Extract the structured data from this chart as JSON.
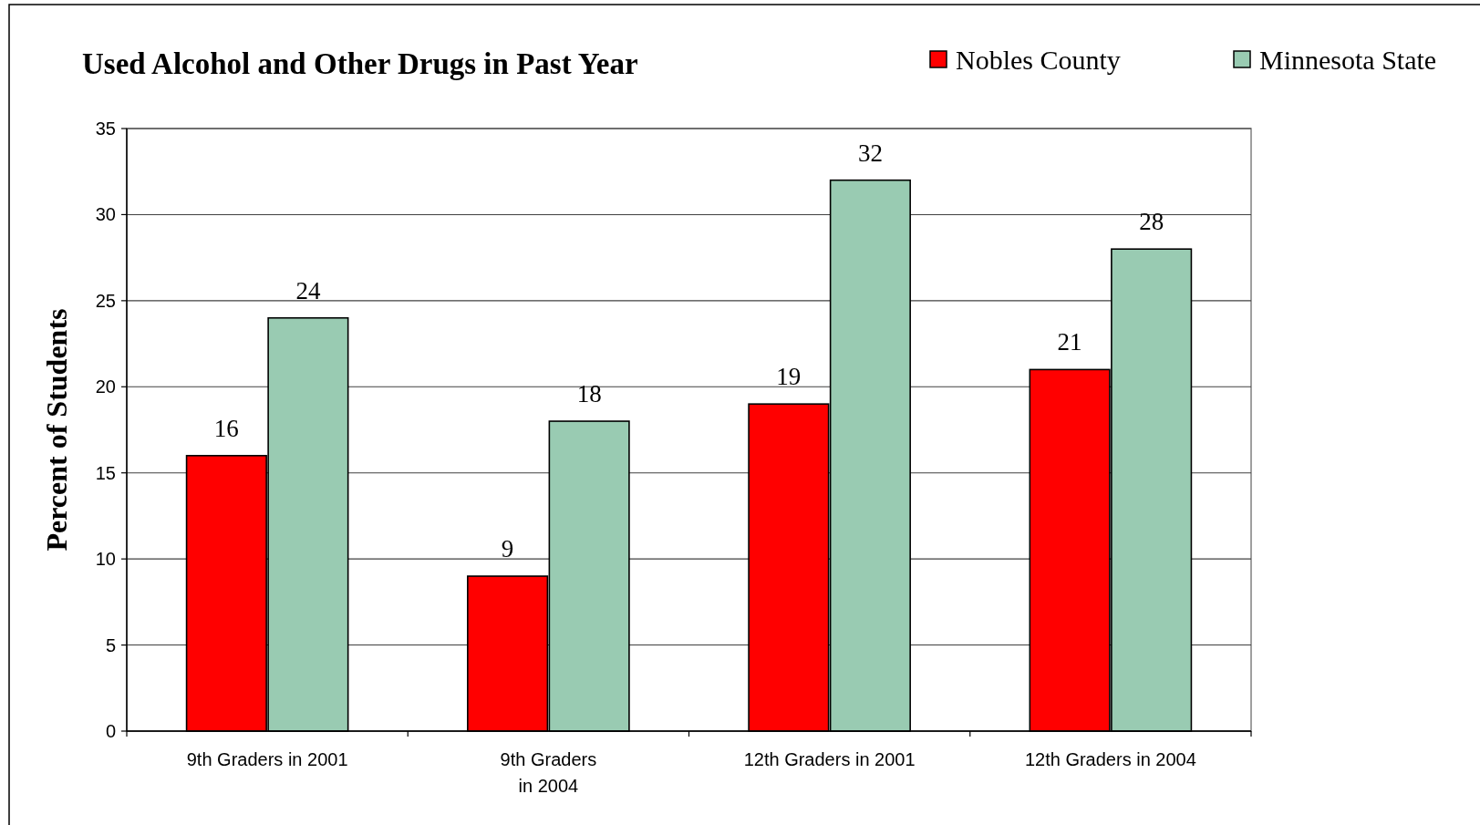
{
  "chart_data": {
    "type": "bar",
    "title": "Used Alcohol and Other Drugs in Past Year",
    "ylabel": "Percent of Students",
    "categories": [
      "9th Graders in 2001",
      "9th Graders\nin 2004",
      "12th Graders in 2001",
      "12th Graders in 2004"
    ],
    "series": [
      {
        "name": "Nobles County",
        "color": "#ff0000",
        "values": [
          16,
          9,
          19,
          21
        ]
      },
      {
        "name": "Minnesota State",
        "color": "#99cbb2",
        "values": [
          24,
          18,
          32,
          28
        ]
      }
    ],
    "ylim": [
      0,
      35
    ],
    "yticks": [
      0,
      5,
      10,
      15,
      20,
      25,
      30,
      35
    ],
    "grid": "y",
    "legend": "top right",
    "data_labels": true
  }
}
